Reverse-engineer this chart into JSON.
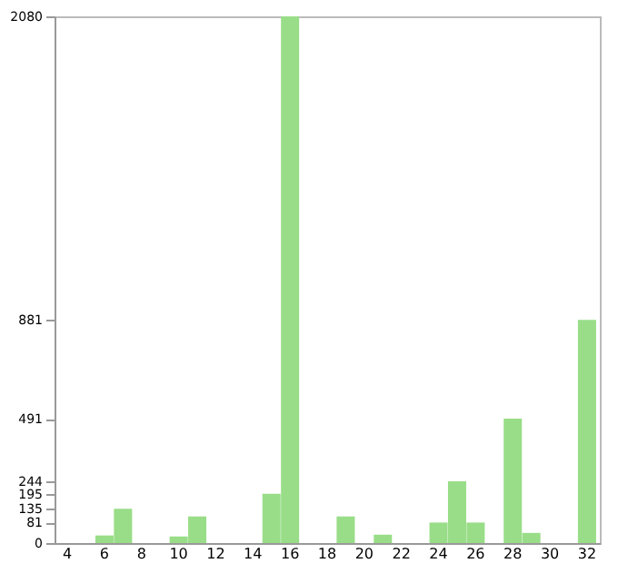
{
  "chart_data": {
    "type": "bar",
    "categories": [
      "4",
      null,
      "6",
      null,
      "8",
      null,
      "10",
      null,
      "12",
      null,
      "14",
      null,
      "16",
      null,
      "18",
      null,
      "20",
      null,
      "22",
      null,
      "24",
      null,
      "26",
      null,
      "28",
      null,
      "30",
      null,
      "32"
    ],
    "values": [
      0,
      0,
      30,
      135,
      0,
      0,
      26,
      105,
      0,
      0,
      0,
      195,
      2080,
      0,
      0,
      105,
      0,
      33,
      0,
      0,
      81,
      244,
      81,
      0,
      491,
      40,
      0,
      0,
      881
    ],
    "color": "#99dd88",
    "ylim": [
      0,
      2080
    ],
    "yticks": [
      0,
      81,
      135,
      195,
      244,
      491,
      881,
      2080
    ],
    "grid": false
  }
}
